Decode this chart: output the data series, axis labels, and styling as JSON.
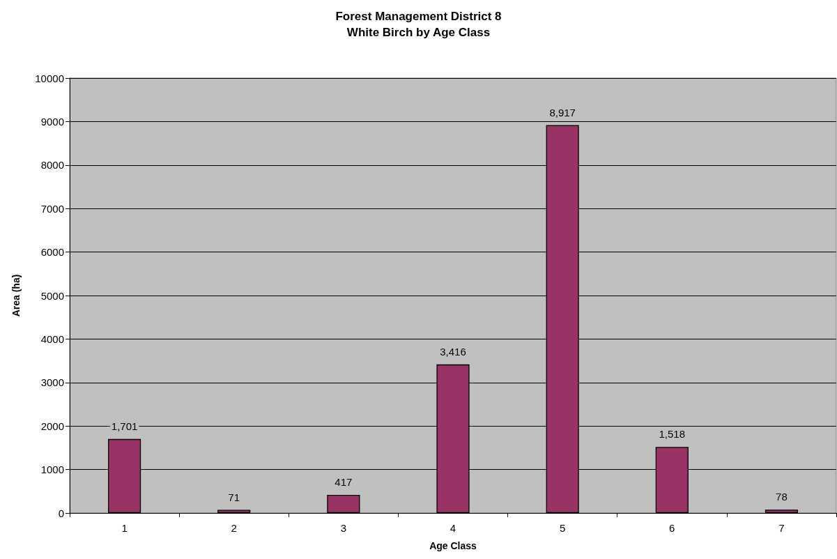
{
  "chart_data": {
    "type": "bar",
    "title": "Forest Management District 8",
    "subtitle": "White Birch by Age Class",
    "xlabel": "Age Class",
    "ylabel": "Area (ha)",
    "categories": [
      "1",
      "2",
      "3",
      "4",
      "5",
      "6",
      "7"
    ],
    "series": [
      {
        "color": "#993366",
        "values": [
          1701,
          71,
          417,
          3416,
          8917,
          1518,
          78
        ],
        "value_labels": [
          "1,701",
          "71",
          "417",
          "3,416",
          "8,917",
          "1,518",
          "78"
        ]
      }
    ],
    "ylim": [
      0,
      10000
    ],
    "yticks": [
      0,
      1000,
      2000,
      3000,
      4000,
      5000,
      6000,
      7000,
      8000,
      9000,
      10000
    ],
    "grid": "y"
  }
}
